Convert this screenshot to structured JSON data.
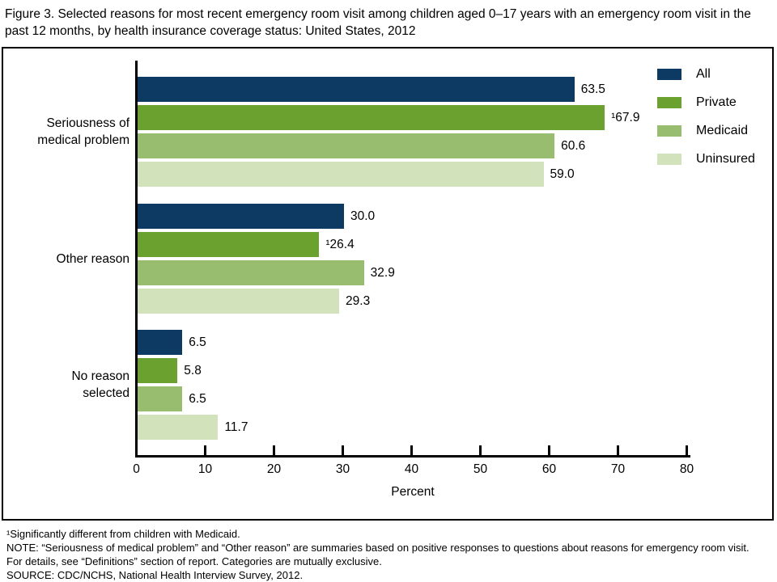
{
  "title": "Figure 3. Selected reasons for most recent emergency room visit among children aged 0–17 years with an emergency room visit in the past 12 months, by health insurance coverage status: United States, 2012",
  "chart_data": {
    "type": "bar",
    "orientation": "horizontal",
    "title": "Selected reasons for most recent emergency room visit among children aged 0–17 years with an emergency room visit in the past 12 months, by health insurance coverage status: United States, 2012",
    "categories": [
      [
        "Seriousness of",
        "medical problem"
      ],
      [
        "Other reason"
      ],
      [
        "No reason",
        "selected"
      ]
    ],
    "series": [
      {
        "name": "All",
        "color": "#0c3a63",
        "values": [
          63.5,
          30.0,
          6.5
        ],
        "display_labels": [
          "63.5",
          "30.0",
          "6.5"
        ]
      },
      {
        "name": "Private",
        "color": "#6ba22f",
        "values": [
          67.9,
          26.4,
          5.8
        ],
        "display_labels": [
          "¹67.9",
          "¹26.4",
          "5.8"
        ]
      },
      {
        "name": "Medicaid",
        "color": "#98bd6e",
        "values": [
          60.6,
          32.9,
          6.5
        ],
        "display_labels": [
          "60.6",
          "32.9",
          "6.5"
        ]
      },
      {
        "name": "Uninsured",
        "color": "#d2e2ba",
        "values": [
          59.0,
          29.3,
          11.7
        ],
        "display_labels": [
          "59.0",
          "29.3",
          "11.7"
        ]
      }
    ],
    "xlabel": "Percent",
    "xlim": [
      0,
      80
    ],
    "xticks": [
      0,
      10,
      20,
      30,
      40,
      50,
      60,
      70,
      80
    ],
    "grid": false,
    "legend_position": "top-right"
  },
  "footnotes": [
    "¹Significantly different from children with Medicaid.",
    "NOTE: “Seriousness of medical problem” and “Other reason” are summaries based on positive responses to questions about reasons for emergency room visit.",
    "For details, see “Definitions” section of report. Categories are mutually exclusive.",
    "SOURCE: CDC/NCHS, National Health Interview Survey, 2012."
  ]
}
